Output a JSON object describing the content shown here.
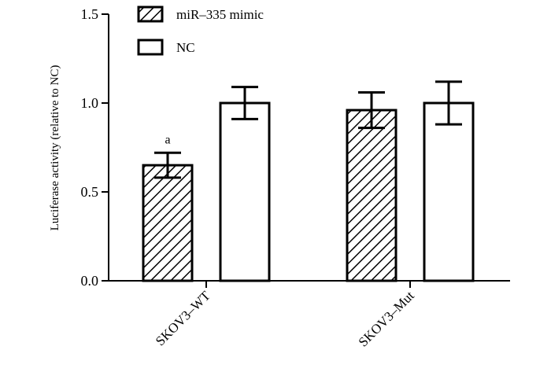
{
  "chart_data": {
    "type": "bar",
    "title": "",
    "xlabel": "",
    "ylabel": "Luciferase activity (relative to NC)",
    "ylim": [
      0,
      1.5
    ],
    "yticks": [
      0.0,
      0.5,
      1.0,
      1.5
    ],
    "ytick_labels": [
      "0.0",
      "0.5",
      "1.0",
      "1.5"
    ],
    "categories": [
      "SKOV3–WT",
      "SKOV3–Mut"
    ],
    "series": [
      {
        "name": "miR–335 mimic",
        "pattern": "diagonal-hatch",
        "values": [
          0.65,
          0.96
        ],
        "errors": [
          0.07,
          0.1
        ]
      },
      {
        "name": "NC",
        "pattern": "white",
        "values": [
          1.0,
          1.0
        ],
        "errors": [
          0.09,
          0.12
        ]
      }
    ],
    "annotations": [
      {
        "text": "a",
        "category": 0,
        "series": 0
      }
    ],
    "legend_position": "top-left",
    "grid": false
  }
}
